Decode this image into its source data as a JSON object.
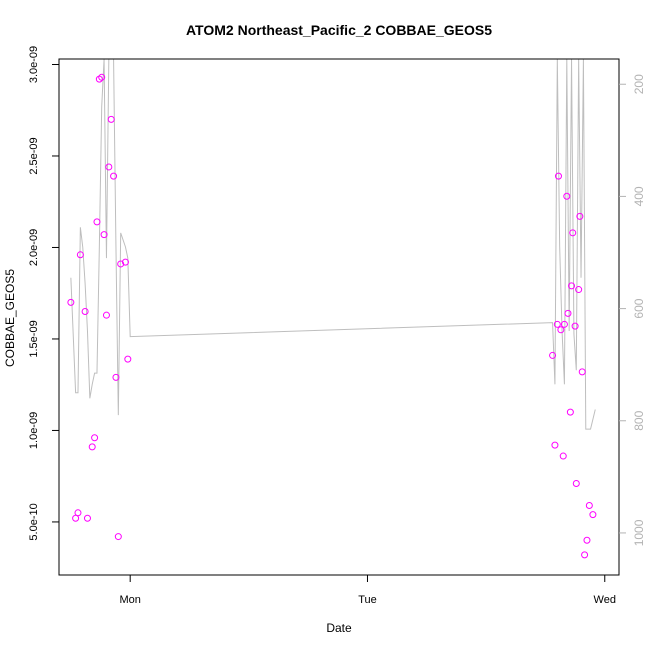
{
  "chart_data": {
    "type": "scatter",
    "title": "ATOM2 Northeast_Pacific_2 COBBAE_GEOS5",
    "xlabel": "Date",
    "ylabel": "COBBAE_GEOS5",
    "x_ticks": [
      {
        "value": 1.0,
        "label": "Mon"
      },
      {
        "value": 2.0,
        "label": "Tue"
      },
      {
        "value": 3.0,
        "label": "Wed"
      }
    ],
    "y_ticks": [
      {
        "value": 5e-10,
        "label": "5.0e-10"
      },
      {
        "value": 1e-09,
        "label": "1.0e-09"
      },
      {
        "value": 1.5e-09,
        "label": "1.5e-09"
      },
      {
        "value": 2e-09,
        "label": "2.0e-09"
      },
      {
        "value": 2.5e-09,
        "label": "2.5e-09"
      },
      {
        "value": 3e-09,
        "label": "3.0e-09"
      }
    ],
    "y2_ticks": [
      {
        "value": 200,
        "label": "200"
      },
      {
        "value": 400,
        "label": "400"
      },
      {
        "value": 600,
        "label": "600"
      },
      {
        "value": 800,
        "label": "800"
      },
      {
        "value": 1000,
        "label": "1000"
      }
    ],
    "xlim": [
      0.7,
      3.06
    ],
    "ylim": [
      2.1e-10,
      3.03e-09
    ],
    "y2lim": [
      1075,
      155
    ],
    "colors": {
      "points": "#ff00ff",
      "line": "#bebebe",
      "axis2": "#b3b3b3"
    },
    "series": [
      {
        "type": "scatter",
        "points": [
          [
            0.75,
            1.7e-09
          ],
          [
            0.77,
            5.2e-10
          ],
          [
            0.78,
            5.5e-10
          ],
          [
            0.79,
            1.96e-09
          ],
          [
            0.81,
            1.65e-09
          ],
          [
            0.82,
            5.2e-10
          ],
          [
            0.84,
            9.1e-10
          ],
          [
            0.85,
            9.6e-10
          ],
          [
            0.86,
            2.14e-09
          ],
          [
            0.87,
            2.92e-09
          ],
          [
            0.88,
            2.93e-09
          ],
          [
            0.89,
            2.07e-09
          ],
          [
            0.9,
            1.63e-09
          ],
          [
            0.91,
            2.44e-09
          ],
          [
            0.92,
            2.7e-09
          ],
          [
            0.93,
            2.39e-09
          ],
          [
            0.94,
            1.29e-09
          ],
          [
            0.95,
            4.2e-10
          ],
          [
            0.96,
            1.91e-09
          ],
          [
            0.98,
            1.92e-09
          ],
          [
            0.99,
            1.39e-09
          ],
          [
            2.78,
            1.41e-09
          ],
          [
            2.79,
            9.2e-10
          ],
          [
            2.8,
            1.58e-09
          ],
          [
            2.805,
            2.39e-09
          ],
          [
            2.815,
            1.55e-09
          ],
          [
            2.825,
            8.6e-10
          ],
          [
            2.83,
            1.58e-09
          ],
          [
            2.84,
            2.28e-09
          ],
          [
            2.845,
            1.64e-09
          ],
          [
            2.855,
            1.1e-09
          ],
          [
            2.86,
            1.79e-09
          ],
          [
            2.865,
            2.08e-09
          ],
          [
            2.875,
            1.57e-09
          ],
          [
            2.88,
            7.1e-10
          ],
          [
            2.89,
            1.77e-09
          ],
          [
            2.895,
            2.17e-09
          ],
          [
            2.905,
            1.32e-09
          ],
          [
            2.915,
            3.2e-10
          ],
          [
            2.925,
            4e-10
          ],
          [
            2.935,
            5.9e-10
          ],
          [
            2.95,
            5.4e-10
          ]
        ]
      },
      {
        "type": "line",
        "axis": "right",
        "points": [
          [
            0.75,
            545
          ],
          [
            0.77,
            750
          ],
          [
            0.78,
            750
          ],
          [
            0.79,
            455
          ],
          [
            0.8,
            490
          ],
          [
            0.81,
            555
          ],
          [
            0.82,
            640
          ],
          [
            0.83,
            760
          ],
          [
            0.84,
            735
          ],
          [
            0.85,
            715
          ],
          [
            0.86,
            715
          ],
          [
            0.87,
            490
          ],
          [
            0.88,
            240
          ],
          [
            0.89,
            155
          ],
          [
            0.9,
            510
          ],
          [
            0.91,
            155
          ],
          [
            0.92,
            155
          ],
          [
            0.93,
            155
          ],
          [
            0.94,
            490
          ],
          [
            0.95,
            790
          ],
          [
            0.96,
            465
          ],
          [
            0.98,
            490
          ],
          [
            0.99,
            510
          ],
          [
            1.0,
            650
          ],
          [
            2.78,
            625
          ],
          [
            2.79,
            735
          ],
          [
            2.8,
            155
          ],
          [
            2.81,
            490
          ],
          [
            2.82,
            640
          ],
          [
            2.83,
            735
          ],
          [
            2.84,
            155
          ],
          [
            2.85,
            640
          ],
          [
            2.86,
            155
          ],
          [
            2.87,
            645
          ],
          [
            2.88,
            710
          ],
          [
            2.89,
            155
          ],
          [
            2.9,
            545
          ],
          [
            2.91,
            155
          ],
          [
            2.92,
            815
          ],
          [
            2.94,
            815
          ],
          [
            2.96,
            780
          ]
        ]
      }
    ]
  }
}
